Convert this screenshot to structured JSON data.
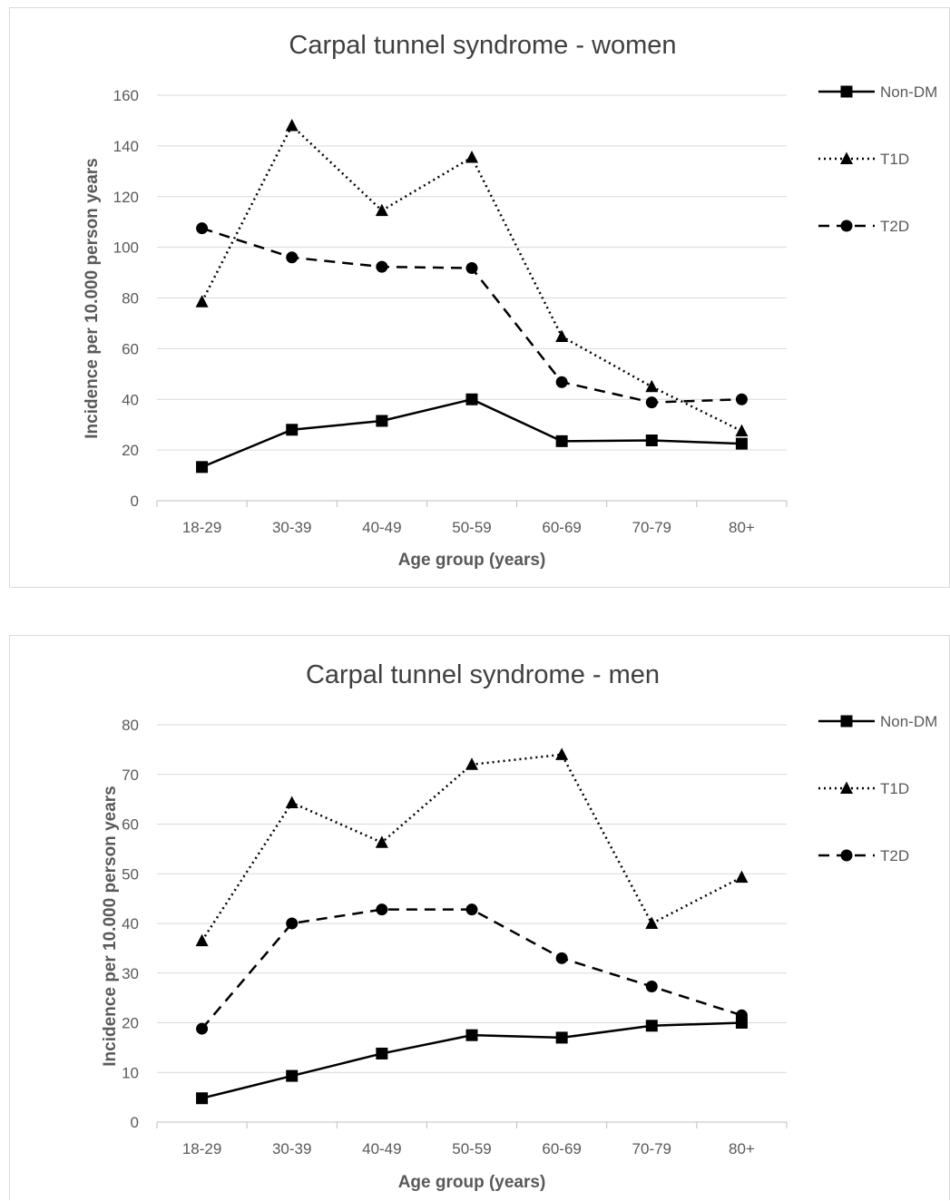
{
  "chart_data": [
    {
      "type": "line",
      "title": "Carpal tunnel syndrome - women",
      "xlabel": "Age group (years)",
      "ylabel": "Incidence per 10.000 person years",
      "categories": [
        "18-29",
        "30-39",
        "40-49",
        "50-59",
        "60-69",
        "70-79",
        "80+"
      ],
      "ylim": [
        0,
        160
      ],
      "yticks": [
        0,
        20,
        40,
        60,
        80,
        100,
        120,
        140,
        160
      ],
      "grid": true,
      "legend_position": "right",
      "series": [
        {
          "name": "Non-DM",
          "values": [
            13.3,
            28.0,
            31.5,
            40.0,
            23.5,
            23.8,
            22.5
          ],
          "marker": "square",
          "dash": "solid"
        },
        {
          "name": "T1D",
          "values": [
            78.5,
            148.0,
            114.5,
            135.5,
            64.8,
            45.0,
            27.5
          ],
          "marker": "triangle",
          "dash": "dotted"
        },
        {
          "name": "T2D",
          "values": [
            107.5,
            96.0,
            92.3,
            91.8,
            46.8,
            38.8,
            40.0
          ],
          "marker": "circle",
          "dash": "dashed"
        }
      ]
    },
    {
      "type": "line",
      "title": "Carpal tunnel syndrome - men",
      "xlabel": "Age group (years)",
      "ylabel": "Incidence per 10.000 person years",
      "categories": [
        "18-29",
        "30-39",
        "40-49",
        "50-59",
        "60-69",
        "70-79",
        "80+"
      ],
      "ylim": [
        0,
        80
      ],
      "yticks": [
        0,
        10,
        20,
        30,
        40,
        50,
        60,
        70,
        80
      ],
      "grid": true,
      "legend_position": "right",
      "series": [
        {
          "name": "Non-DM",
          "values": [
            4.8,
            9.3,
            13.8,
            17.5,
            17.0,
            19.4,
            20.0
          ],
          "marker": "square",
          "dash": "solid"
        },
        {
          "name": "T1D",
          "values": [
            36.5,
            64.3,
            56.3,
            72.0,
            74.0,
            40.0,
            49.3
          ],
          "marker": "triangle",
          "dash": "dotted"
        },
        {
          "name": "T2D",
          "values": [
            18.8,
            40.0,
            42.8,
            42.8,
            33.0,
            27.3,
            21.5
          ],
          "marker": "circle",
          "dash": "dashed"
        }
      ]
    }
  ],
  "colors": {
    "line": "#000000",
    "grid": "#d9d9d9",
    "text": "#595959",
    "title": "#404040"
  }
}
